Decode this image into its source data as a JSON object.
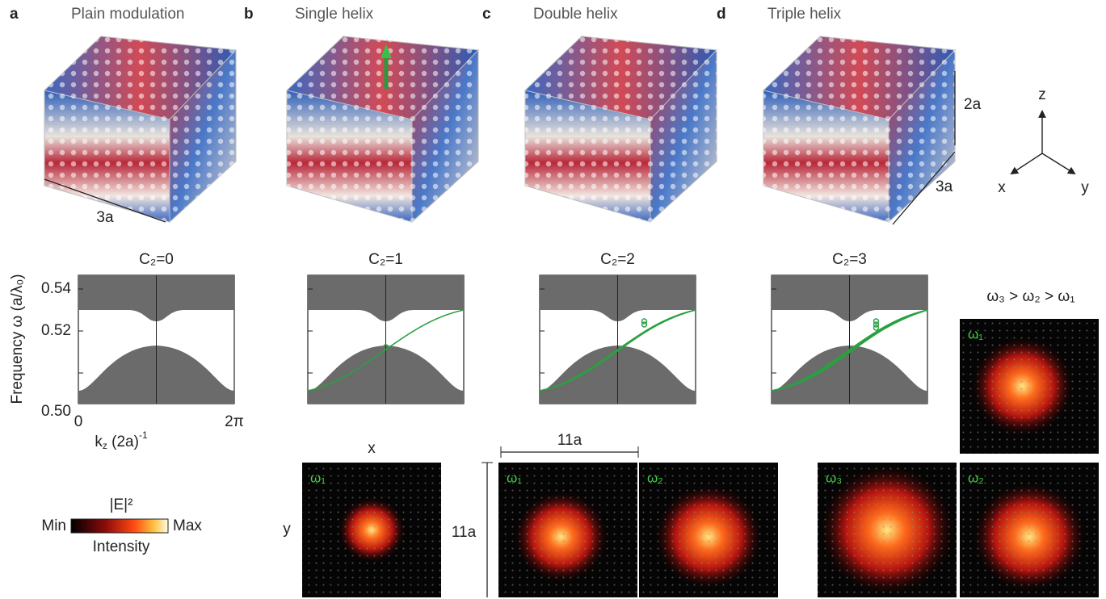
{
  "panels": [
    {
      "letter": "a",
      "title": "Plain modulation",
      "invariant": "C₂=0"
    },
    {
      "letter": "b",
      "title": "Single helix",
      "invariant": "C₂=1"
    },
    {
      "letter": "c",
      "title": "Double helix",
      "invariant": "C₂=2"
    },
    {
      "letter": "d",
      "title": "Triple helix",
      "invariant": "C₂=3"
    }
  ],
  "cube_labels": {
    "width": "3a",
    "height": "2a",
    "depth": "3a"
  },
  "axes_triad": {
    "x": "x",
    "y": "y",
    "z": "z"
  },
  "band_plot": {
    "y_label": "Frequency ω (a/λ₀)",
    "y_ticks": [
      "0.54",
      "0.52",
      "0.50"
    ],
    "x_ticks": [
      "0",
      "2π"
    ],
    "x_label": {
      "base": "k",
      "sub": "z",
      "rest": " (2a)",
      "sup": "-1"
    }
  },
  "colorbar": {
    "title": "|E|²",
    "min": "Min",
    "max": "Max",
    "caption": "Intensity"
  },
  "field_maps": {
    "x_axis": "x",
    "y_axis": "y",
    "width": "11a",
    "height": "11a",
    "ordering": "ω₃ > ω₂ > ω₁",
    "labels": [
      "ω₁",
      "ω₁",
      "ω₂",
      "ω₃",
      "ω₂",
      "ω₁"
    ]
  }
}
